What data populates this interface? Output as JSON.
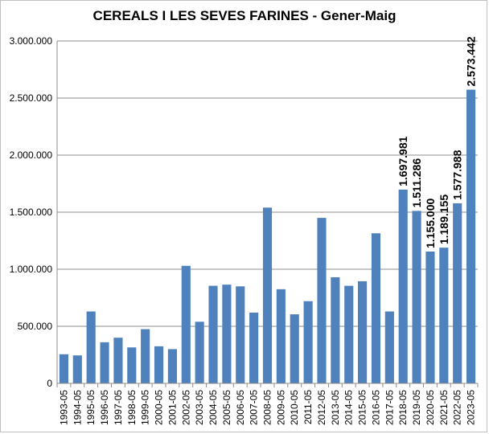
{
  "chart_data": {
    "type": "bar",
    "title": "CEREALS I LES SEVES FARINES - Gener-Maig",
    "xlabel": "",
    "ylabel": "",
    "ylim": [
      0,
      3000000
    ],
    "y_ticks": [
      0,
      500000,
      1000000,
      1500000,
      2000000,
      2500000,
      3000000
    ],
    "y_tick_labels": [
      "0",
      "500.000",
      "1.000.000",
      "1.500.000",
      "2.000.000",
      "2.500.000",
      "3.000.000"
    ],
    "grid": "horizontal",
    "legend": "none",
    "bar_color": "#4f81bd",
    "categories": [
      "1993-05",
      "1994-05",
      "1995-05",
      "1996-05",
      "1997-05",
      "1998-05",
      "1999-05",
      "2000-05",
      "2001-05",
      "2002-05",
      "2003-05",
      "2004-05",
      "2005-05",
      "2006-05",
      "2007-05",
      "2008-05",
      "2009-05",
      "2010-05",
      "2011-05",
      "2012-05",
      "2013-05",
      "2014-05",
      "2015-05",
      "2016-05",
      "2017-05",
      "2018-05",
      "2019-05",
      "2020-05",
      "2021-05",
      "2022-05",
      "2023-05"
    ],
    "values": [
      255000,
      245000,
      630000,
      360000,
      400000,
      315000,
      475000,
      325000,
      300000,
      1030000,
      540000,
      855000,
      865000,
      850000,
      620000,
      1540000,
      825000,
      605000,
      720000,
      1450000,
      930000,
      855000,
      895000,
      1315000,
      630000,
      1697981,
      1511286,
      1155000,
      1189155,
      1577988,
      2573442
    ],
    "data_labels": [
      {
        "index": 25,
        "text": "1.697.981"
      },
      {
        "index": 26,
        "text": "1.511.286"
      },
      {
        "index": 27,
        "text": "1.155.000"
      },
      {
        "index": 28,
        "text": "1.189.155"
      },
      {
        "index": 29,
        "text": "1.577.988"
      },
      {
        "index": 30,
        "text": "2.573.442"
      }
    ]
  }
}
